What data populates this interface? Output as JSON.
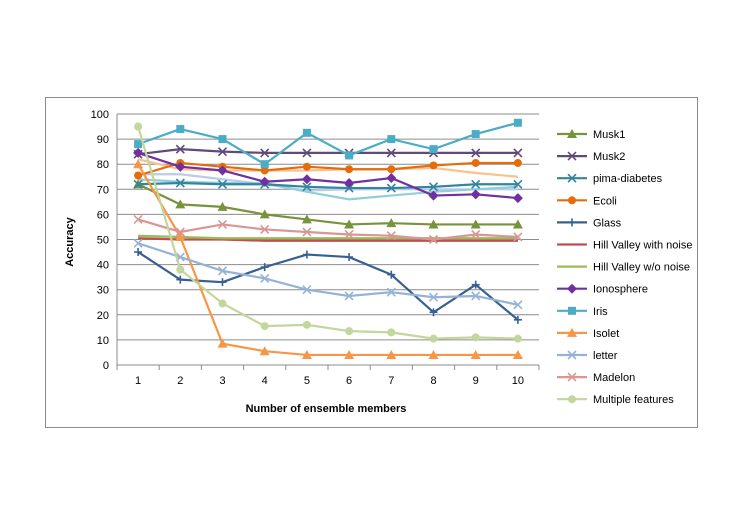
{
  "chart_data": {
    "type": "line",
    "title": "",
    "xlabel": "Number of ensemble members",
    "ylabel": "Accuracy",
    "ylim": [
      0,
      100
    ],
    "yticks": [
      0,
      10,
      20,
      30,
      40,
      50,
      60,
      70,
      80,
      90,
      100
    ],
    "x": [
      1,
      2,
      3,
      4,
      5,
      6,
      7,
      8,
      9,
      10
    ],
    "grid": "horizontal",
    "legend": "right",
    "series": [
      {
        "name": "Musk1",
        "color": "#77933C",
        "marker": "triangle",
        "values": [
          72,
          64,
          63,
          60,
          58,
          56,
          56.5,
          56,
          56,
          56
        ]
      },
      {
        "name": "Musk2",
        "color": "#604A7B",
        "marker": "x",
        "values": [
          84,
          86,
          85,
          84.5,
          84.5,
          84.5,
          84.5,
          84.5,
          84.5,
          84.5
        ]
      },
      {
        "name": "pima-diabetes",
        "color": "#31859C",
        "marker": "x",
        "values": [
          72,
          72.5,
          72,
          72,
          71,
          70.5,
          70.5,
          71,
          72,
          72
        ]
      },
      {
        "name": "Ecoli",
        "color": "#E46C0A",
        "marker": "circle",
        "values": [
          75.5,
          80.5,
          79,
          77.5,
          79,
          78,
          78,
          79.5,
          80.5,
          80.5
        ]
      },
      {
        "name": "Glass",
        "color": "#376092",
        "marker": "plus",
        "values": [
          45,
          34,
          33,
          39,
          44,
          43,
          36,
          21,
          32,
          18
        ]
      },
      {
        "name": "Hill Valley with noise",
        "color": "#C0504D",
        "marker": "none",
        "values": [
          50.5,
          50,
          50,
          49.5,
          49.5,
          49.5,
          49.5,
          49.5,
          49.5,
          49.5
        ]
      },
      {
        "name": "Hill Valley w/o noise",
        "color": "#9BBB59",
        "marker": "none",
        "values": [
          51.5,
          51,
          50.5,
          50.5,
          50.5,
          50.5,
          50.5,
          50.5,
          50.5,
          50.5
        ]
      },
      {
        "name": "Ionosphere",
        "color": "#7030A0",
        "marker": "diamond",
        "values": [
          84.5,
          79,
          77.5,
          73,
          74,
          72.5,
          74.5,
          67.5,
          68,
          66.5
        ]
      },
      {
        "name": "Iris",
        "color": "#4BACC6",
        "marker": "square",
        "values": [
          88,
          94,
          90,
          80,
          92.5,
          83.5,
          90,
          86,
          92,
          96.5
        ]
      },
      {
        "name": "Isolet",
        "color": "#F79646",
        "marker": "triangle",
        "values": [
          80,
          51,
          8.5,
          5.5,
          4,
          4,
          4,
          4,
          4,
          4
        ]
      },
      {
        "name": "letter",
        "color": "#95B3D7",
        "marker": "x",
        "values": [
          48.5,
          43,
          37.5,
          34.5,
          30,
          27.5,
          29,
          27,
          27.5,
          24
        ]
      },
      {
        "name": "Madelon",
        "color": "#D99694",
        "marker": "x",
        "values": [
          58,
          53,
          56,
          54,
          53,
          52,
          51.5,
          50,
          52,
          51
        ]
      },
      {
        "name": "Multiple features",
        "color": "#C3D69B",
        "marker": "circle",
        "values": [
          95,
          38,
          24.5,
          15.5,
          16,
          13.5,
          13,
          10.5,
          11,
          10.5
        ]
      }
    ],
    "extra_lines": [
      {
        "color": "#FAC090",
        "values": [
          82,
          78,
          77.5,
          77.5,
          77.5,
          78,
          78,
          78.5,
          76.5,
          75
        ]
      },
      {
        "color": "#B9CDE5",
        "values": [
          76,
          76,
          74,
          72,
          69.5,
          70,
          70,
          70,
          70,
          70
        ]
      },
      {
        "color": "#93CDDD",
        "values": [
          74,
          73,
          72.5,
          72.5,
          69,
          66,
          67.5,
          69,
          70,
          71
        ]
      }
    ]
  }
}
